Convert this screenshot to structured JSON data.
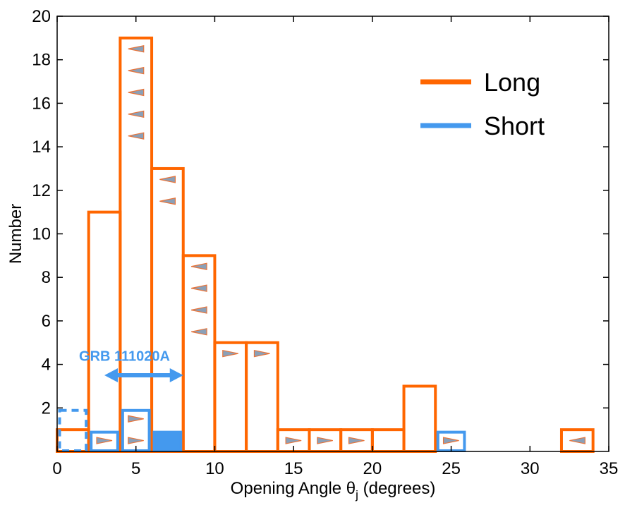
{
  "chart_data": {
    "type": "bar",
    "title": "",
    "xlabel": "Opening Angle θ",
    "xlabel_subscript": "j",
    "xlabel_suffix": " (degrees)",
    "ylabel": "Number",
    "xlim": [
      0,
      35
    ],
    "ylim": [
      0,
      20
    ],
    "xticks": [
      0,
      5,
      10,
      15,
      20,
      25,
      30,
      35
    ],
    "yticks": [
      2,
      4,
      6,
      8,
      10,
      12,
      14,
      16,
      18,
      20
    ],
    "grid": false,
    "legend_position": "top-right",
    "series": [
      {
        "name": "Long",
        "color": "#ff6600",
        "bins": [
          {
            "x0": 0,
            "x1": 2,
            "count": 1
          },
          {
            "x0": 2,
            "x1": 4,
            "count": 11
          },
          {
            "x0": 4,
            "x1": 6,
            "count": 19
          },
          {
            "x0": 6,
            "x1": 8,
            "count": 13
          },
          {
            "x0": 8,
            "x1": 10,
            "count": 9
          },
          {
            "x0": 10,
            "x1": 12,
            "count": 5
          },
          {
            "x0": 12,
            "x1": 14,
            "count": 5
          },
          {
            "x0": 14,
            "x1": 16,
            "count": 1
          },
          {
            "x0": 16,
            "x1": 18,
            "count": 1
          },
          {
            "x0": 18,
            "x1": 20,
            "count": 1
          },
          {
            "x0": 20,
            "x1": 22,
            "count": 1
          },
          {
            "x0": 22,
            "x1": 24,
            "count": 3
          },
          {
            "x0": 24,
            "x1": 26,
            "count": 0
          },
          {
            "x0": 26,
            "x1": 28,
            "count": 0
          },
          {
            "x0": 28,
            "x1": 30,
            "count": 0
          },
          {
            "x0": 30,
            "x1": 32,
            "count": 0
          },
          {
            "x0": 32,
            "x1": 34,
            "count": 1
          }
        ],
        "upper_limits": [
          {
            "x": 5,
            "y": 18.5
          },
          {
            "x": 5,
            "y": 17.5
          },
          {
            "x": 5,
            "y": 16.5
          },
          {
            "x": 5,
            "y": 15.5
          },
          {
            "x": 5,
            "y": 14.5
          },
          {
            "x": 7,
            "y": 12.5
          },
          {
            "x": 7,
            "y": 11.5
          },
          {
            "x": 9,
            "y": 8.5
          },
          {
            "x": 9,
            "y": 7.5
          },
          {
            "x": 9,
            "y": 6.5
          },
          {
            "x": 9,
            "y": 5.5
          },
          {
            "x": 33,
            "y": 0.5
          }
        ],
        "lower_limits": [
          {
            "x": 11,
            "y": 4.5
          },
          {
            "x": 13,
            "y": 4.5
          },
          {
            "x": 15,
            "y": 0.5
          },
          {
            "x": 17,
            "y": 0.5
          },
          {
            "x": 19,
            "y": 0.5
          }
        ]
      },
      {
        "name": "Short",
        "color": "#4499ee",
        "bins": [
          {
            "x0": 0,
            "x1": 2,
            "count": 2,
            "style": "dashed"
          },
          {
            "x0": 2,
            "x1": 4,
            "count": 1
          },
          {
            "x0": 4,
            "x1": 6,
            "count": 2
          },
          {
            "x0": 6,
            "x1": 8,
            "count": 1,
            "style": "filled"
          },
          {
            "x0": 24,
            "x1": 26,
            "count": 1
          }
        ],
        "lower_limits": [
          {
            "x": 3,
            "y": 0.5
          },
          {
            "x": 5,
            "y": 1.5
          },
          {
            "x": 5,
            "y": 0.5
          },
          {
            "x": 25,
            "y": 0.5
          }
        ]
      }
    ],
    "annotation": {
      "text": "GRB 111020A",
      "color": "#4499ee",
      "range": [
        3,
        8
      ],
      "y": 3.5,
      "text_x": 3,
      "text_y": 4.4
    }
  }
}
